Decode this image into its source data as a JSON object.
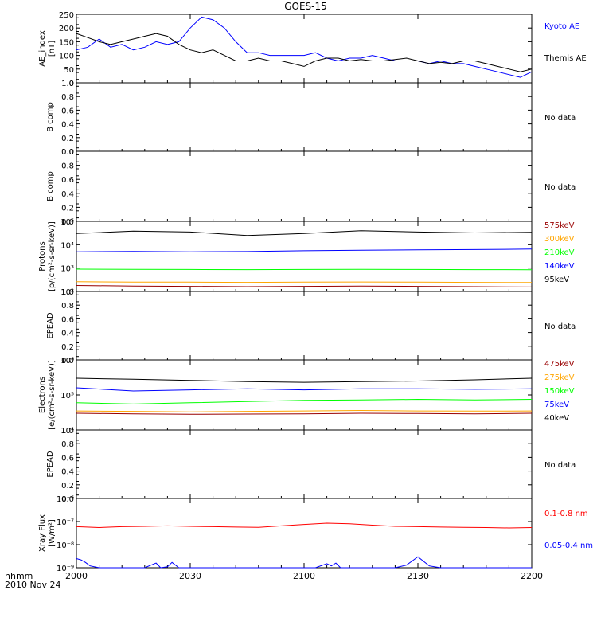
{
  "title": "GOES-15",
  "x_axis": {
    "ticks": [
      "2000",
      "2030",
      "2100",
      "2130",
      "2200"
    ],
    "unit_label": "hhmm",
    "date_label": "2010 Nov 24"
  },
  "colors": {
    "black": "#000000",
    "blue": "#0000ff",
    "green": "#00ff00",
    "orange": "#ffa500",
    "red": "#ff0000",
    "darkred": "#990000"
  },
  "no_data_text": "No data",
  "chart_data": [
    {
      "type": "line",
      "panel": "ae",
      "ylabel": [
        "AE_index",
        "[nT]"
      ],
      "ylim": [
        0,
        250
      ],
      "yticks": [
        "250",
        "200",
        "150",
        "100",
        "50",
        "0"
      ],
      "x_range": [
        "2000",
        "2200"
      ],
      "series": [
        {
          "name": "Kyoto AE",
          "color": "#0000ff",
          "x": [
            0,
            5,
            10,
            15,
            20,
            25,
            30,
            35,
            40,
            45,
            50,
            55,
            60,
            65,
            70,
            75,
            80,
            85,
            90,
            95,
            100,
            105,
            110,
            115,
            120,
            125,
            130,
            135,
            140,
            145,
            150,
            155,
            160,
            165,
            170,
            175,
            180,
            185,
            190,
            195,
            200
          ],
          "values": [
            120,
            130,
            160,
            130,
            140,
            120,
            130,
            150,
            140,
            150,
            200,
            240,
            230,
            200,
            150,
            110,
            110,
            100,
            100,
            100,
            100,
            110,
            90,
            80,
            90,
            90,
            100,
            90,
            80,
            80,
            80,
            70,
            80,
            70,
            70,
            60,
            50,
            40,
            30,
            20,
            40
          ]
        },
        {
          "name": "Themis AE",
          "color": "#000000",
          "x": [
            0,
            5,
            10,
            15,
            20,
            25,
            30,
            35,
            40,
            45,
            50,
            55,
            60,
            65,
            70,
            75,
            80,
            85,
            90,
            95,
            100,
            105,
            110,
            115,
            120,
            125,
            130,
            135,
            140,
            145,
            150,
            155,
            160,
            165,
            170,
            175,
            180,
            185,
            190,
            195,
            200
          ],
          "values": [
            180,
            165,
            150,
            140,
            150,
            160,
            170,
            180,
            170,
            140,
            120,
            110,
            120,
            100,
            80,
            80,
            90,
            80,
            80,
            70,
            60,
            80,
            90,
            90,
            80,
            85,
            80,
            80,
            85,
            90,
            80,
            70,
            75,
            70,
            80,
            80,
            70,
            60,
            50,
            40,
            50
          ]
        }
      ]
    },
    {
      "type": "line",
      "panel": "bcomp1",
      "ylabel": [
        "B comp"
      ],
      "ylim": [
        0,
        1
      ],
      "yticks": [
        "1.0",
        "0.8",
        "0.6",
        "0.4",
        "0.2",
        "0.0"
      ],
      "no_data": true
    },
    {
      "type": "line",
      "panel": "bcomp2",
      "ylabel": [
        "B comp"
      ],
      "ylim": [
        0,
        1
      ],
      "yticks": [
        "1.0",
        "0.8",
        "0.6",
        "0.4",
        "0.2",
        "0.0"
      ],
      "no_data": true
    },
    {
      "type": "line",
      "panel": "protons",
      "scale": "log",
      "ylabel": [
        "Protons",
        "[p/(cm²-s-sr-keV)]"
      ],
      "ylim": [
        100,
        100000
      ],
      "yticks": [
        "10⁵",
        "10⁴",
        "10³",
        "10²"
      ],
      "series": [
        {
          "name": "575keV",
          "color": "#990000",
          "x": [
            0,
            25,
            50,
            75,
            100,
            125,
            150,
            175,
            200
          ],
          "values": [
            180,
            170,
            165,
            160,
            165,
            170,
            165,
            160,
            155
          ]
        },
        {
          "name": "300keV",
          "color": "#ffa500",
          "x": [
            0,
            25,
            50,
            75,
            100,
            125,
            150,
            175,
            200
          ],
          "values": [
            260,
            250,
            250,
            245,
            250,
            255,
            250,
            245,
            240
          ]
        },
        {
          "name": "210keV",
          "color": "#00ff00",
          "x": [
            0,
            25,
            50,
            75,
            100,
            125,
            150,
            175,
            200
          ],
          "values": [
            900,
            880,
            870,
            860,
            870,
            880,
            870,
            860,
            850
          ]
        },
        {
          "name": "140keV",
          "color": "#0000ff",
          "x": [
            0,
            25,
            50,
            75,
            100,
            125,
            150,
            175,
            200
          ],
          "values": [
            5000,
            5200,
            5000,
            5100,
            5500,
            5800,
            6000,
            6200,
            6500
          ]
        },
        {
          "name": "95keV",
          "color": "#000000",
          "x": [
            0,
            25,
            50,
            75,
            100,
            125,
            150,
            175,
            200
          ],
          "values": [
            30000,
            38000,
            35000,
            25000,
            30000,
            40000,
            35000,
            32000,
            34000
          ]
        }
      ]
    },
    {
      "type": "line",
      "panel": "epead1",
      "ylabel": [
        "EPEAD"
      ],
      "ylim": [
        0,
        1
      ],
      "yticks": [
        "1.0",
        "0.8",
        "0.6",
        "0.4",
        "0.2",
        "0.0"
      ],
      "no_data": true
    },
    {
      "type": "line",
      "panel": "electrons",
      "scale": "log",
      "ylabel": [
        "Electrons",
        "[e/(cm²-s-sr-keV)]"
      ],
      "ylim": [
        10000,
        1000000
      ],
      "yticks": [
        "10⁶",
        "10⁵",
        "10⁴"
      ],
      "series": [
        {
          "name": "475keV",
          "color": "#990000",
          "x": [
            0,
            25,
            50,
            75,
            100,
            125,
            150,
            175,
            200
          ],
          "values": [
            30000,
            29000,
            28000,
            28500,
            29000,
            30000,
            29500,
            29000,
            30000
          ]
        },
        {
          "name": "275keV",
          "color": "#ffa500",
          "x": [
            0,
            25,
            50,
            75,
            100,
            125,
            150,
            175,
            200
          ],
          "values": [
            35000,
            34000,
            33000,
            34000,
            35000,
            36000,
            35000,
            34500,
            35000
          ]
        },
        {
          "name": "150keV",
          "color": "#00ff00",
          "x": [
            0,
            25,
            50,
            75,
            100,
            125,
            150,
            175,
            200
          ],
          "values": [
            60000,
            55000,
            60000,
            65000,
            70000,
            72000,
            75000,
            72000,
            75000
          ]
        },
        {
          "name": "75keV",
          "color": "#0000ff",
          "x": [
            0,
            25,
            50,
            75,
            100,
            125,
            150,
            175,
            200
          ],
          "values": [
            160000,
            130000,
            140000,
            150000,
            140000,
            150000,
            150000,
            145000,
            150000
          ]
        },
        {
          "name": "40keV",
          "color": "#000000",
          "x": [
            0,
            25,
            50,
            75,
            100,
            125,
            150,
            175,
            200
          ],
          "values": [
            300000,
            280000,
            260000,
            240000,
            230000,
            240000,
            250000,
            270000,
            300000
          ]
        }
      ]
    },
    {
      "type": "line",
      "panel": "epead2",
      "ylabel": [
        "EPEAD"
      ],
      "ylim": [
        0,
        1
      ],
      "yticks": [
        "1.0",
        "0.8",
        "0.6",
        "0.4",
        "0.2",
        "0.0"
      ],
      "no_data": true
    },
    {
      "type": "line",
      "panel": "xray",
      "scale": "log",
      "ylabel": [
        "Xray Flux",
        "[W/m²]"
      ],
      "ylim": [
        1e-09,
        1e-06
      ],
      "yticks": [
        "10⁻⁶",
        "10⁻⁷",
        "10⁻⁸",
        "10⁻⁹"
      ],
      "series": [
        {
          "name": "0.1-0.8 nm",
          "color": "#ff0000",
          "x": [
            0,
            10,
            20,
            30,
            40,
            50,
            60,
            70,
            80,
            90,
            100,
            110,
            120,
            130,
            140,
            150,
            160,
            170,
            180,
            190,
            200
          ],
          "values": [
            6e-08,
            5.5e-08,
            6e-08,
            6.2e-08,
            6.5e-08,
            6.2e-08,
            6e-08,
            5.8e-08,
            5.6e-08,
            6.5e-08,
            7.5e-08,
            8.5e-08,
            8e-08,
            7e-08,
            6.2e-08,
            6e-08,
            5.8e-08,
            5.6e-08,
            5.5e-08,
            5.3e-08,
            5.5e-08
          ]
        },
        {
          "name": "0.05-0.4 nm",
          "color": "#0000ff",
          "x": [
            0,
            2,
            4,
            6,
            10,
            20,
            30,
            35,
            37,
            40,
            42,
            45,
            50,
            60,
            70,
            80,
            90,
            105,
            110,
            112,
            114,
            116,
            120,
            140,
            145,
            150,
            155,
            160,
            170,
            180,
            190,
            200
          ],
          "values": [
            2.5e-09,
            2.2e-09,
            1.7e-09,
            1.2e-09,
            1e-09,
            1e-09,
            1e-09,
            1.6e-09,
            1e-09,
            1.1e-09,
            1.7e-09,
            1e-09,
            1e-09,
            1e-09,
            1e-09,
            1e-09,
            1e-09,
            1e-09,
            1.5e-09,
            1.2e-09,
            1.6e-09,
            1e-09,
            1e-09,
            1e-09,
            1.3e-09,
            3e-09,
            1.2e-09,
            1e-09,
            1e-09,
            1e-09,
            1e-09,
            1e-09
          ]
        }
      ]
    }
  ]
}
